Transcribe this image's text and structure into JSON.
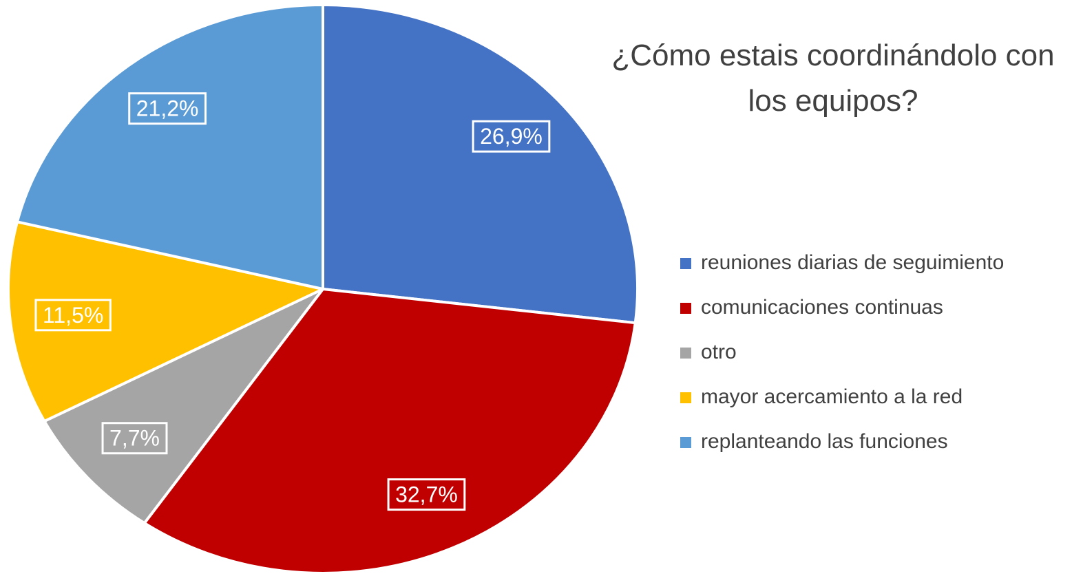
{
  "chart_data": {
    "type": "pie",
    "title": "¿Cómo estais coordinándolo con los equipos?",
    "categories": [
      "reuniones diarias de seguimiento",
      "comunicaciones continuas",
      "otro",
      "mayor acercamiento a la red",
      "replanteando las funciones"
    ],
    "values": [
      26.9,
      32.7,
      7.7,
      11.5,
      21.2
    ],
    "value_labels": [
      "26,9%",
      "32,7%",
      "7,7%",
      "11,5%",
      "21,2%"
    ],
    "colors": [
      "#4472c4",
      "#c00000",
      "#a5a5a5",
      "#ffc000",
      "#5b9bd5"
    ],
    "legend": "right"
  }
}
